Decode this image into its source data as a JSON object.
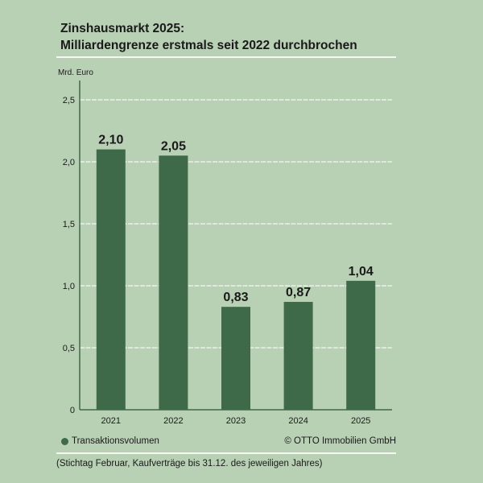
{
  "title_line1": "Zinshausmarkt 2025:",
  "title_line2": "Milliardengrenze erstmals seit 2022 durchbrochen",
  "chart_data": {
    "type": "bar",
    "ylabel": "Mrd. Euro",
    "categories": [
      "2021",
      "2022",
      "2023",
      "2024",
      "2025"
    ],
    "values": [
      2.1,
      2.05,
      0.83,
      0.87,
      1.04
    ],
    "data_labels": [
      "2,10",
      "2,05",
      "0,83",
      "0,87",
      "1,04"
    ],
    "yticks": [
      0,
      0.5,
      1.0,
      1.5,
      2.0,
      2.5
    ],
    "ytick_labels": [
      "0",
      "0,5",
      "1,0",
      "1,5",
      "2,0",
      "2,5"
    ],
    "ylim": [
      0,
      2.5
    ],
    "grid": true,
    "legend": {
      "position": "bottom-left",
      "entries": [
        "Transaktionsvolumen"
      ]
    },
    "colors": {
      "bar": "#3e6a4a",
      "background": "#b8d0b4",
      "grid": "#f4f7f2"
    }
  },
  "source": "© OTTO Immobilien GmbH",
  "footnote": "(Stichtag Februar, Kaufverträge bis 31.12. des jeweiligen Jahres)"
}
